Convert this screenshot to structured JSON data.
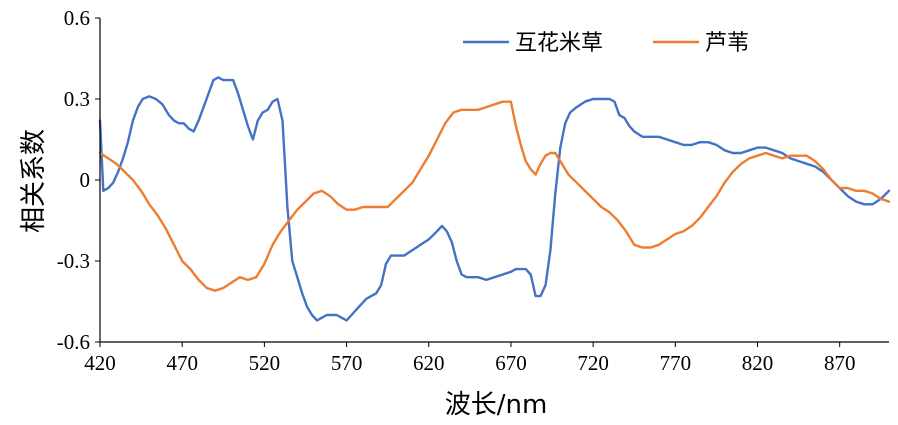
{
  "chart_data": {
    "type": "line",
    "xlabel": "波长/nm",
    "ylabel": "相关系数",
    "xlim": [
      420,
      900
    ],
    "ylim": [
      -0.6,
      0.6
    ],
    "x_ticks": [
      "420",
      "470",
      "520",
      "570",
      "620",
      "670",
      "720",
      "770",
      "820",
      "870"
    ],
    "x_tick_values": [
      420,
      470,
      520,
      570,
      620,
      670,
      720,
      770,
      820,
      870
    ],
    "y_ticks": [
      "0.6",
      "0.3",
      "0",
      "-0.3",
      "-0.6"
    ],
    "y_tick_values": [
      0.6,
      0.3,
      0,
      -0.3,
      -0.6
    ],
    "grid": false,
    "legend_position": "top-right",
    "series": [
      {
        "name": "互花米草",
        "color": "#4472C4",
        "x": [
          420,
          422,
          425,
          428,
          431,
          434,
          437,
          440,
          443,
          446,
          450,
          454,
          458,
          462,
          465,
          468,
          471,
          474,
          477,
          480,
          483,
          486,
          489,
          492,
          495,
          498,
          501,
          504,
          507,
          510,
          513,
          516,
          519,
          522,
          525,
          528,
          531,
          534,
          537,
          540,
          543,
          546,
          549,
          552,
          555,
          558,
          561,
          564,
          567,
          570,
          573,
          576,
          579,
          582,
          585,
          588,
          591,
          594,
          597,
          600,
          605,
          610,
          615,
          620,
          625,
          628,
          631,
          634,
          637,
          640,
          643,
          646,
          650,
          655,
          660,
          665,
          670,
          673,
          676,
          679,
          682,
          685,
          688,
          691,
          694,
          697,
          700,
          703,
          706,
          710,
          715,
          720,
          725,
          730,
          733,
          736,
          739,
          742,
          745,
          750,
          755,
          760,
          765,
          770,
          775,
          780,
          785,
          790,
          795,
          800,
          805,
          810,
          815,
          820,
          825,
          830,
          835,
          840,
          845,
          850,
          855,
          860,
          865,
          870,
          875,
          880,
          885,
          890,
          895,
          900
        ],
        "y": [
          0.22,
          -0.04,
          -0.03,
          -0.01,
          0.03,
          0.08,
          0.14,
          0.22,
          0.27,
          0.3,
          0.31,
          0.3,
          0.28,
          0.24,
          0.22,
          0.21,
          0.21,
          0.19,
          0.18,
          0.22,
          0.27,
          0.32,
          0.37,
          0.38,
          0.37,
          0.37,
          0.37,
          0.32,
          0.26,
          0.2,
          0.15,
          0.22,
          0.25,
          0.26,
          0.29,
          0.3,
          0.22,
          -0.1,
          -0.3,
          -0.36,
          -0.42,
          -0.47,
          -0.5,
          -0.52,
          -0.51,
          -0.5,
          -0.5,
          -0.5,
          -0.51,
          -0.52,
          -0.5,
          -0.48,
          -0.46,
          -0.44,
          -0.43,
          -0.42,
          -0.39,
          -0.31,
          -0.28,
          -0.28,
          -0.28,
          -0.26,
          -0.24,
          -0.22,
          -0.19,
          -0.17,
          -0.19,
          -0.23,
          -0.3,
          -0.35,
          -0.36,
          -0.36,
          -0.36,
          -0.37,
          -0.36,
          -0.35,
          -0.34,
          -0.33,
          -0.33,
          -0.33,
          -0.35,
          -0.43,
          -0.43,
          -0.39,
          -0.26,
          -0.05,
          0.12,
          0.21,
          0.25,
          0.27,
          0.29,
          0.3,
          0.3,
          0.3,
          0.29,
          0.24,
          0.23,
          0.2,
          0.18,
          0.16,
          0.16,
          0.16,
          0.15,
          0.14,
          0.13,
          0.13,
          0.14,
          0.14,
          0.13,
          0.11,
          0.1,
          0.1,
          0.11,
          0.12,
          0.12,
          0.11,
          0.1,
          0.08,
          0.07,
          0.06,
          0.05,
          0.03,
          0.0,
          -0.03,
          -0.06,
          -0.08,
          -0.09,
          -0.09,
          -0.07,
          -0.04
        ]
      },
      {
        "name": "芦苇",
        "color": "#ED7D31",
        "x": [
          420,
          425,
          430,
          435,
          440,
          445,
          450,
          455,
          460,
          465,
          470,
          475,
          480,
          485,
          490,
          495,
          500,
          505,
          510,
          515,
          520,
          525,
          530,
          535,
          540,
          545,
          550,
          555,
          560,
          565,
          570,
          575,
          580,
          585,
          590,
          595,
          600,
          605,
          610,
          615,
          620,
          625,
          630,
          635,
          640,
          645,
          650,
          655,
          660,
          665,
          670,
          673,
          676,
          679,
          682,
          685,
          688,
          691,
          694,
          697,
          700,
          705,
          710,
          715,
          720,
          725,
          730,
          735,
          740,
          745,
          750,
          755,
          760,
          765,
          770,
          775,
          780,
          785,
          790,
          795,
          800,
          805,
          810,
          815,
          820,
          825,
          830,
          835,
          840,
          845,
          850,
          855,
          860,
          865,
          870,
          875,
          880,
          885,
          890,
          895,
          900
        ],
        "y": [
          0.1,
          0.08,
          0.06,
          0.03,
          0.0,
          -0.04,
          -0.09,
          -0.13,
          -0.18,
          -0.24,
          -0.3,
          -0.33,
          -0.37,
          -0.4,
          -0.41,
          -0.4,
          -0.38,
          -0.36,
          -0.37,
          -0.36,
          -0.31,
          -0.24,
          -0.19,
          -0.15,
          -0.11,
          -0.08,
          -0.05,
          -0.04,
          -0.06,
          -0.09,
          -0.11,
          -0.11,
          -0.1,
          -0.1,
          -0.1,
          -0.1,
          -0.07,
          -0.04,
          -0.01,
          0.04,
          0.09,
          0.15,
          0.21,
          0.25,
          0.26,
          0.26,
          0.26,
          0.27,
          0.28,
          0.29,
          0.29,
          0.2,
          0.13,
          0.07,
          0.04,
          0.02,
          0.06,
          0.09,
          0.1,
          0.1,
          0.07,
          0.02,
          -0.01,
          -0.04,
          -0.07,
          -0.1,
          -0.12,
          -0.15,
          -0.19,
          -0.24,
          -0.25,
          -0.25,
          -0.24,
          -0.22,
          -0.2,
          -0.19,
          -0.17,
          -0.14,
          -0.1,
          -0.06,
          -0.01,
          0.03,
          0.06,
          0.08,
          0.09,
          0.1,
          0.09,
          0.08,
          0.09,
          0.09,
          0.09,
          0.07,
          0.04,
          0.0,
          -0.03,
          -0.03,
          -0.04,
          -0.04,
          -0.05,
          -0.07,
          -0.08
        ]
      }
    ]
  }
}
